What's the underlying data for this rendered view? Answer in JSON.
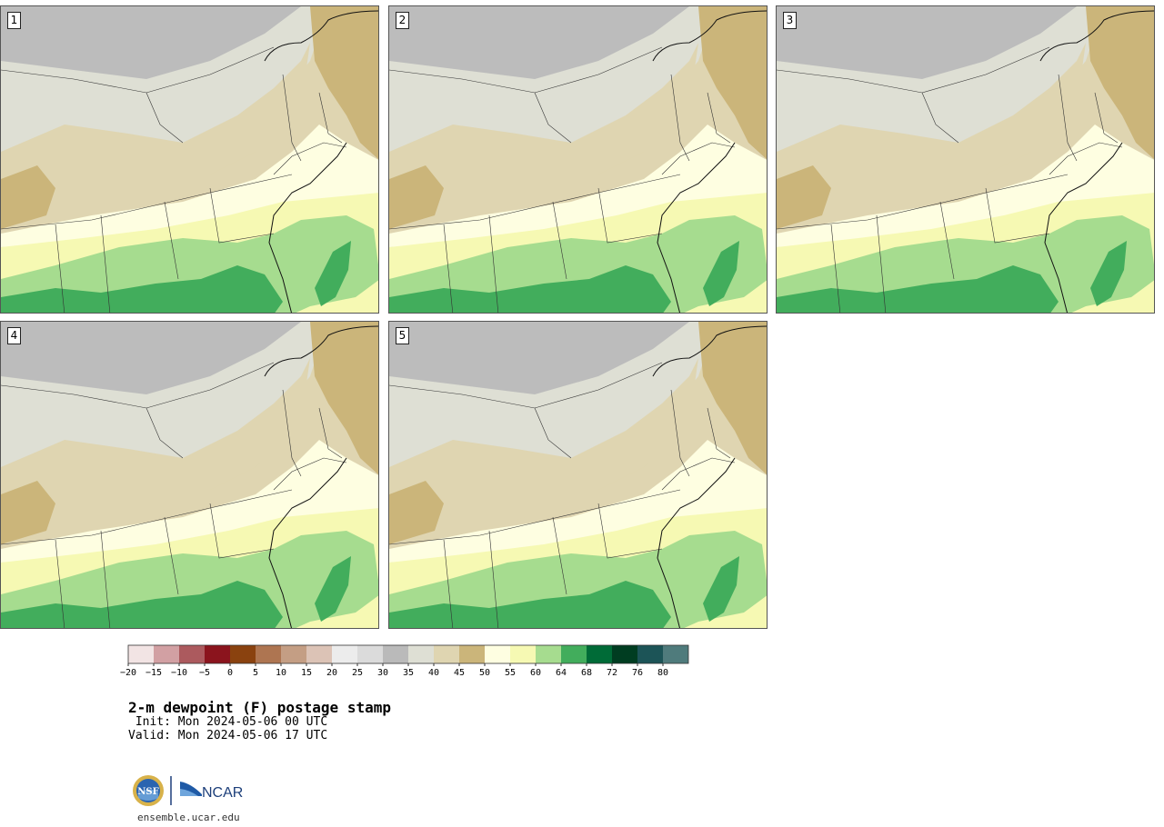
{
  "panels": [
    {
      "label": "1"
    },
    {
      "label": "2"
    },
    {
      "label": "3"
    },
    {
      "label": "4"
    },
    {
      "label": "5"
    }
  ],
  "colorbar": {
    "colors": [
      "#f2e4e4",
      "#d2a0a3",
      "#ac5a5e",
      "#8b141d",
      "#8a420f",
      "#ae7551",
      "#c49e84",
      "#dcc3b6",
      "#ececec",
      "#dbdbdb",
      "#bababa",
      "#dedfd4",
      "#dfd5b1",
      "#cbb57a",
      "#fefee1",
      "#f6f9b3",
      "#a6dc8f",
      "#42ad5c",
      "#006b37",
      "#003d21",
      "#1c5457",
      "#4f7b7c"
    ],
    "ticks": [
      "−20",
      "−15",
      "−10",
      "−5",
      "0",
      "5",
      "10",
      "15",
      "20",
      "25",
      "30",
      "35",
      "40",
      "45",
      "50",
      "55",
      "60",
      "64",
      "68",
      "72",
      "76",
      "80"
    ]
  },
  "title": "2-m dewpoint (F) postage stamp",
  "init_line": " Init: Mon 2024-05-06 00 UTC",
  "valid_line": "Valid: Mon 2024-05-06 17 UTC",
  "logo": {
    "left_text": "NSF",
    "right_text": "NCAR"
  },
  "website": "ensemble.ucar.edu",
  "map_colors": {
    "gray": "#bcbcbc",
    "pale": "#dedfd4",
    "tan": "#dfd5b1",
    "brown": "#cbb57a",
    "cream": "#fefee1",
    "yellow": "#f6f9b3",
    "lightgreen": "#a6dc8f",
    "green": "#42ad5c"
  }
}
